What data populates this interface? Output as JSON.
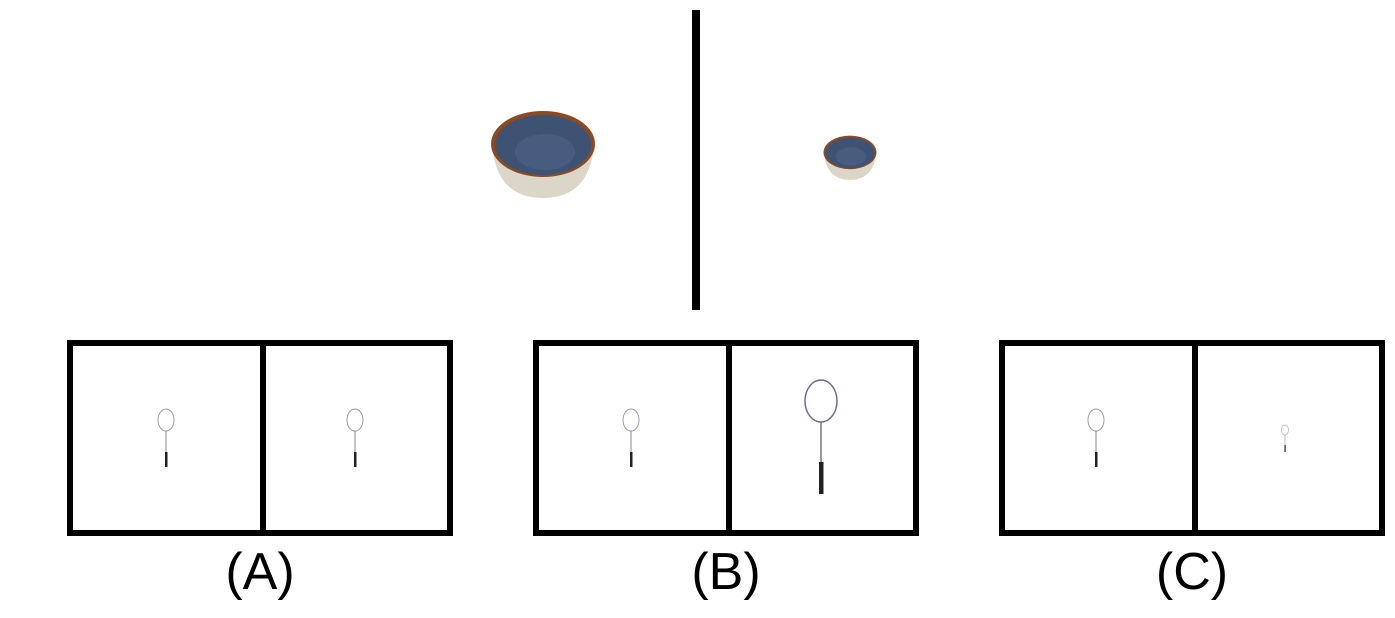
{
  "reference": {
    "left_icon": "bowl-icon",
    "right_icon": "bowl-icon",
    "bowl_inner_color": "#3e5273",
    "bowl_rim_color": "#8b4a22",
    "bowl_outer_color": "#dcd6c8"
  },
  "options": [
    {
      "label": "(A)",
      "left_icon": "badminton-racket-icon",
      "right_icon": "badminton-racket-icon"
    },
    {
      "label": "(B)",
      "left_icon": "badminton-racket-icon",
      "right_icon": "badminton-racket-icon"
    },
    {
      "label": "(C)",
      "left_icon": "badminton-racket-icon",
      "right_icon": "badminton-racket-icon"
    }
  ],
  "racket_frame_color": "#6a6aa8",
  "racket_handle_color": "#222222"
}
